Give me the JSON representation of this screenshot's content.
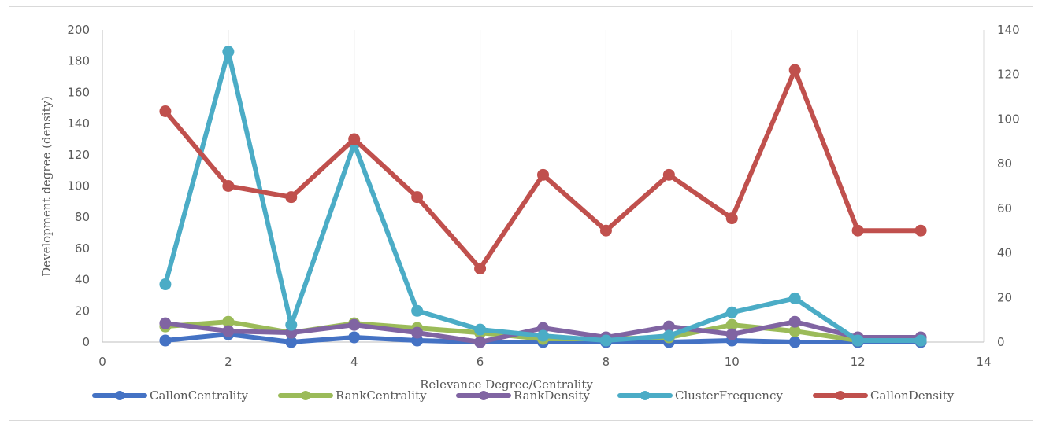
{
  "chart_data": {
    "type": "scatter",
    "title": "",
    "xlabel": "Relevance Degree/Centrality",
    "ylabel": "Development degree (density)",
    "xlim": [
      0,
      14
    ],
    "ylim": [
      0,
      200
    ],
    "y2lim": [
      0,
      140
    ],
    "x_ticks": [
      "0",
      "2",
      "4",
      "6",
      "8",
      "10",
      "12",
      "14"
    ],
    "y_ticks": [
      "0",
      "20",
      "40",
      "60",
      "80",
      "100",
      "120",
      "140",
      "160",
      "180",
      "200"
    ],
    "y2_ticks": [
      "0",
      "20",
      "40",
      "60",
      "80",
      "100",
      "120",
      "140"
    ],
    "grid": "vertical",
    "legend_position": "bottom",
    "x": [
      1,
      2,
      3,
      4,
      5,
      6,
      7,
      8,
      9,
      10,
      11,
      12,
      13
    ],
    "series": [
      {
        "name": "CallonCentrality",
        "color": "#4472c4",
        "axis": "left",
        "values": [
          1,
          5,
          0,
          3,
          1,
          0,
          0,
          0,
          0,
          1,
          0,
          0,
          0
        ]
      },
      {
        "name": "RankCentrality",
        "color": "#9bbb59",
        "axis": "left",
        "values": [
          10,
          13,
          6,
          12,
          9,
          6,
          2,
          2,
          3,
          11,
          7,
          1,
          1
        ]
      },
      {
        "name": "RankDensity",
        "color": "#8064a2",
        "axis": "left",
        "values": [
          12,
          7,
          6,
          11,
          6,
          0,
          9,
          3,
          10,
          5,
          13,
          3,
          3
        ]
      },
      {
        "name": "ClusterFrequency",
        "color": "#4bacc6",
        "axis": "left",
        "values": [
          37,
          186,
          11,
          127,
          20,
          8,
          4,
          1,
          4,
          19,
          28,
          1,
          1
        ]
      },
      {
        "name": "CallonDensity",
        "color": "#c0504d",
        "axis": "right",
        "values": [
          103.5,
          70,
          65,
          91,
          65,
          33,
          75,
          50,
          75,
          55.5,
          122,
          50,
          50
        ]
      }
    ]
  }
}
